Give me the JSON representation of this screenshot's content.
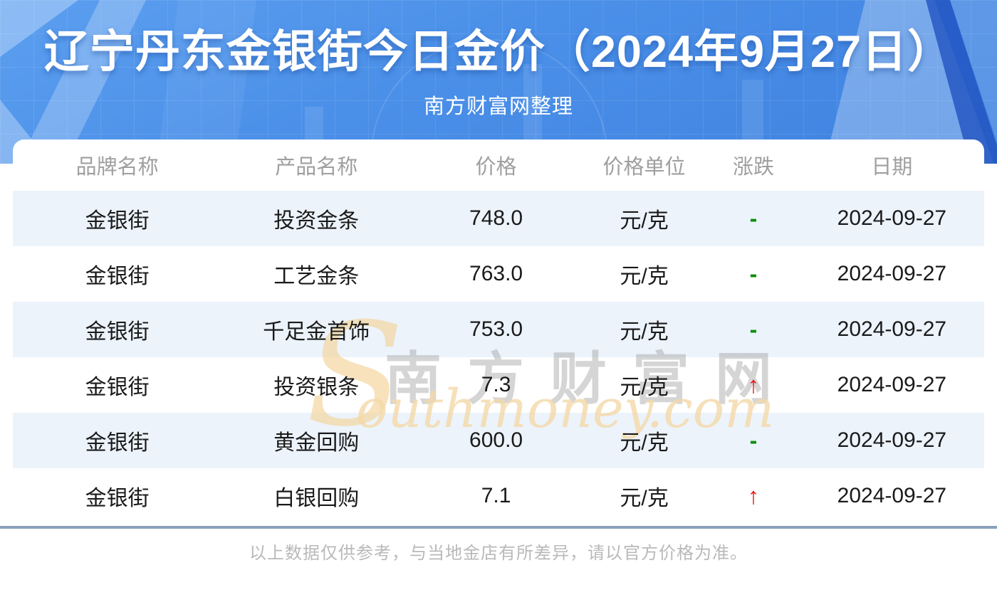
{
  "page": {
    "title": "辽宁丹东金银街今日金价（2024年9月27日）",
    "subtitle": "南方财富网整理",
    "disclaimer": "以上数据仅供参考，与当地金店有所差异，请以官方价格为准。"
  },
  "watermark": {
    "initial": "S",
    "cn": "南方财富网",
    "en": "outhmoney.com"
  },
  "table": {
    "columns": [
      "品牌名称",
      "产品名称",
      "价格",
      "价格单位",
      "涨跌",
      "日期"
    ],
    "rows": [
      {
        "brand": "金银街",
        "product": "投资金条",
        "price": "748.0",
        "unit": "元/克",
        "change": "flat",
        "date": "2024-09-27"
      },
      {
        "brand": "金银街",
        "product": "工艺金条",
        "price": "763.0",
        "unit": "元/克",
        "change": "flat",
        "date": "2024-09-27"
      },
      {
        "brand": "金银街",
        "product": "千足金首饰",
        "price": "753.0",
        "unit": "元/克",
        "change": "flat",
        "date": "2024-09-27"
      },
      {
        "brand": "金银街",
        "product": "投资银条",
        "price": "7.3",
        "unit": "元/克",
        "change": "up",
        "date": "2024-09-27"
      },
      {
        "brand": "金银街",
        "product": "黄金回购",
        "price": "600.0",
        "unit": "元/克",
        "change": "flat",
        "date": "2024-09-27"
      },
      {
        "brand": "金银街",
        "product": "白银回购",
        "price": "7.1",
        "unit": "元/克",
        "change": "up",
        "date": "2024-09-27"
      }
    ],
    "change_symbols": {
      "up": "↑",
      "flat": "-"
    }
  },
  "colors": {
    "hero_blue": "#4a8fe8",
    "row_alt_bg": "#ecf3fb",
    "up_red": "#ee1212",
    "flat_green": "#089000",
    "divider": "#8ca2bb",
    "header_text": "#9f9f9f"
  }
}
